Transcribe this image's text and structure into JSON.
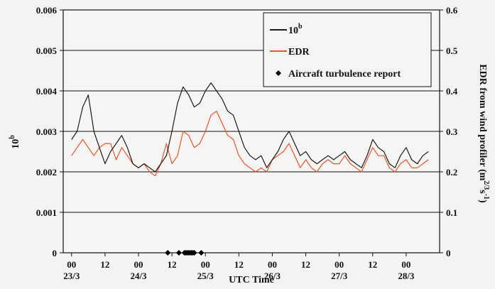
{
  "chart_data": {
    "type": "line",
    "xlabel": "UTC Time",
    "ylabel_left": "10",
    "ylabel_left_sup": "b",
    "ylabel_right": "EDR from wind profiler (m",
    "ylabel_right_sup": "2/3",
    "ylabel_right_mid": "s",
    "ylabel_right_sup2": "-1",
    "ylabel_right_end": ")",
    "x_unit": "hours since 00 UTC 23/3",
    "xlim": [
      -3,
      132
    ],
    "ylim_left": [
      0,
      0.006
    ],
    "ylim_right": [
      0,
      0.6
    ],
    "yticks_left": [
      "0",
      "0.001",
      "0.002",
      "0.003",
      "0.004",
      "0.005",
      "0.006"
    ],
    "yticks_right": [
      "0",
      "0.1",
      "0.2",
      "0.3",
      "0.4",
      "0.5",
      "0.6"
    ],
    "xticks": [
      {
        "x": 0,
        "top": "00",
        "bottom": "23/3"
      },
      {
        "x": 12,
        "top": "12",
        "bottom": ""
      },
      {
        "x": 24,
        "top": "00",
        "bottom": "24/3"
      },
      {
        "x": 36,
        "top": "12",
        "bottom": ""
      },
      {
        "x": 48,
        "top": "00",
        "bottom": "25/3"
      },
      {
        "x": 60,
        "top": "12",
        "bottom": ""
      },
      {
        "x": 72,
        "top": "00",
        "bottom": "26/3"
      },
      {
        "x": 84,
        "top": "12",
        "bottom": ""
      },
      {
        "x": 96,
        "top": "00",
        "bottom": "27/3"
      },
      {
        "x": 108,
        "top": "12",
        "bottom": ""
      },
      {
        "x": 120,
        "top": "00",
        "bottom": "28/3"
      }
    ],
    "grid": "horizontal",
    "legend_position": "top-right",
    "series": [
      {
        "name": "10",
        "name_sup": "b",
        "axis": "left",
        "color": "#1a1a1a",
        "x": [
          0,
          2,
          4,
          6,
          8,
          10,
          12,
          14,
          16,
          18,
          20,
          22,
          24,
          26,
          28,
          30,
          32,
          34,
          36,
          38,
          40,
          42,
          44,
          46,
          48,
          50,
          52,
          54,
          56,
          58,
          60,
          62,
          64,
          66,
          68,
          70,
          72,
          74,
          76,
          78,
          80,
          82,
          84,
          86,
          88,
          90,
          92,
          94,
          96,
          98,
          100,
          102,
          104,
          106,
          108,
          110,
          112,
          114,
          116,
          118,
          120,
          122,
          124,
          126,
          128
        ],
        "y": [
          0.0028,
          0.003,
          0.0036,
          0.0039,
          0.003,
          0.0026,
          0.0022,
          0.0025,
          0.0027,
          0.0029,
          0.0026,
          0.0022,
          0.0021,
          0.0022,
          0.0021,
          0.002,
          0.0022,
          0.0024,
          0.003,
          0.0037,
          0.0041,
          0.0039,
          0.0036,
          0.0037,
          0.004,
          0.0042,
          0.004,
          0.0038,
          0.0035,
          0.0034,
          0.003,
          0.0026,
          0.0024,
          0.0023,
          0.0024,
          0.0021,
          0.0023,
          0.0025,
          0.0028,
          0.003,
          0.0027,
          0.0024,
          0.0025,
          0.0023,
          0.0022,
          0.0023,
          0.0024,
          0.0023,
          0.0024,
          0.0025,
          0.0023,
          0.0022,
          0.0021,
          0.0024,
          0.0028,
          0.0026,
          0.0025,
          0.0022,
          0.0021,
          0.0024,
          0.0026,
          0.0023,
          0.0022,
          0.0024,
          0.0025
        ]
      },
      {
        "name": "EDR",
        "axis": "right",
        "color": "#e8542a",
        "x": [
          0,
          2,
          4,
          6,
          8,
          10,
          12,
          14,
          16,
          18,
          20,
          22,
          24,
          26,
          28,
          30,
          32,
          34,
          36,
          38,
          40,
          42,
          44,
          46,
          48,
          50,
          52,
          54,
          56,
          58,
          60,
          62,
          64,
          66,
          68,
          70,
          72,
          74,
          76,
          78,
          80,
          82,
          84,
          86,
          88,
          90,
          92,
          94,
          96,
          98,
          100,
          102,
          104,
          106,
          108,
          110,
          112,
          114,
          116,
          118,
          120,
          122,
          124,
          126,
          128
        ],
        "y": [
          0.24,
          0.26,
          0.28,
          0.26,
          0.24,
          0.26,
          0.27,
          0.27,
          0.23,
          0.26,
          0.24,
          0.22,
          0.21,
          0.22,
          0.2,
          0.19,
          0.22,
          0.27,
          0.22,
          0.24,
          0.3,
          0.29,
          0.26,
          0.27,
          0.3,
          0.34,
          0.35,
          0.32,
          0.29,
          0.28,
          0.24,
          0.22,
          0.21,
          0.2,
          0.21,
          0.2,
          0.23,
          0.24,
          0.25,
          0.27,
          0.24,
          0.21,
          0.23,
          0.21,
          0.2,
          0.22,
          0.23,
          0.22,
          0.22,
          0.24,
          0.22,
          0.21,
          0.2,
          0.23,
          0.26,
          0.24,
          0.24,
          0.21,
          0.2,
          0.22,
          0.23,
          0.21,
          0.21,
          0.22,
          0.23
        ]
      },
      {
        "name": "Aircraft turbulence report",
        "axis": "left",
        "type": "scatter",
        "color": "#000000",
        "x": [
          34.5,
          38.5,
          40.5,
          41.0,
          41.5,
          42.0,
          42.5,
          43.0,
          43.5,
          44.0,
          46.5
        ],
        "y": [
          0,
          0,
          0,
          0,
          0,
          0,
          0,
          0,
          0,
          0,
          0
        ]
      }
    ]
  }
}
